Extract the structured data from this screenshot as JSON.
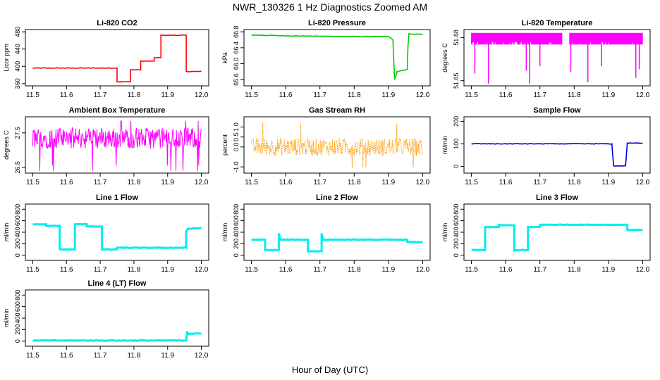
{
  "figure": {
    "title": "NWR_130326  1 Hz Diagnostics Zoomed AM",
    "xlabel": "Hour of Day (UTC)"
  },
  "chart_data": [
    {
      "type": "line",
      "title": "Li-820 CO2",
      "ylabel": "Licor ppm",
      "color": "#ff0000",
      "xlim": [
        11.5,
        12.0
      ],
      "ylim": [
        360,
        480
      ],
      "xticks": [
        "11.5",
        "11.6",
        "11.7",
        "11.8",
        "11.9",
        "12.0"
      ],
      "yticks": [
        "360",
        "400",
        "440",
        "480"
      ],
      "series": [
        {
          "x": [
            11.5,
            11.75,
            11.75,
            11.76,
            11.76,
            11.79,
            11.79,
            11.82,
            11.82,
            11.86,
            11.86,
            11.88,
            11.88,
            11.955,
            11.955,
            12.0
          ],
          "y": [
            396,
            396,
            364,
            364,
            364,
            364,
            392,
            392,
            412,
            412,
            420,
            420,
            472,
            472,
            388,
            388
          ]
        }
      ]
    },
    {
      "type": "line",
      "title": "Li-820 Pressure",
      "ylabel": "kPa",
      "color": "#00cc00",
      "xlim": [
        11.5,
        12.0
      ],
      "ylim": [
        65.5,
        66.8
      ],
      "xticks": [
        "11.5",
        "11.6",
        "11.7",
        "11.8",
        "11.9",
        "12.0"
      ],
      "yticks": [
        "65.6",
        "66.0",
        "66.4",
        "66.8"
      ],
      "series": [
        {
          "x": [
            11.5,
            11.6,
            11.7,
            11.8,
            11.9,
            11.913,
            11.918,
            11.925,
            11.925,
            11.955,
            11.957,
            11.96,
            11.965,
            12.0
          ],
          "y": [
            66.72,
            66.7,
            66.69,
            66.68,
            66.68,
            66.6,
            65.6,
            65.78,
            65.8,
            65.85,
            66.45,
            66.75,
            66.74,
            66.74
          ]
        }
      ]
    },
    {
      "type": "line",
      "title": "Li-820 Temperature",
      "ylabel": "degrees C",
      "color": "#ff00ff",
      "xlim": [
        11.5,
        12.0
      ],
      "ylim": [
        51.648,
        51.684
      ],
      "xticks": [
        "11.5",
        "11.6",
        "11.7",
        "11.8",
        "11.9",
        "12.0"
      ],
      "yticks": [
        "51.65",
        "51.68"
      ],
      "series": [
        {
          "low": 51.6752,
          "high": 51.6832,
          "gaps": [
            [
              11.765,
              11.786
            ]
          ],
          "spikes_down": [
            [
              11.51,
              51.655
            ],
            [
              11.55,
              51.648
            ],
            [
              11.66,
              51.657
            ],
            [
              11.67,
              51.648
            ],
            [
              11.7,
              51.66
            ],
            [
              11.79,
              51.656
            ],
            [
              11.84,
              51.649
            ],
            [
              11.88,
              51.66
            ],
            [
              11.98,
              51.652
            ],
            [
              11.99,
              51.658
            ]
          ]
        }
      ]
    },
    {
      "type": "line",
      "title": "Ambient Box Temperature",
      "ylabel": "degrees C",
      "color": "#ff00ff",
      "xlim": [
        11.5,
        12.0
      ],
      "ylim": [
        26.4,
        27.9
      ],
      "xticks": [
        "11.5",
        "11.6",
        "11.7",
        "11.8",
        "11.9",
        "12.0"
      ],
      "yticks": [
        "26.5",
        "27.5"
      ],
      "series": [
        {
          "center": 27.35,
          "spread": 0.3,
          "extremes": [
            26.55,
            27.85
          ]
        }
      ]
    },
    {
      "type": "scatter",
      "title": "Gas Stream RH",
      "ylabel": "percent",
      "color": "#ff9900",
      "xlim": [
        11.5,
        12.0
      ],
      "ylim": [
        -1.2,
        1.4
      ],
      "xticks": [
        "11.5",
        "11.6",
        "11.7",
        "11.8",
        "11.9",
        "12.0"
      ],
      "yticks": [
        "-1.0",
        "0.0",
        "0.5",
        "1.0"
      ],
      "series": [
        {
          "center": 0.0,
          "spread": 0.45,
          "extremes": [
            -1.1,
            1.25
          ]
        }
      ]
    },
    {
      "type": "line",
      "title": "Sample Flow",
      "ylabel": "ml/min",
      "color": "#0000cc",
      "xlim": [
        11.5,
        12.0
      ],
      "ylim": [
        -20,
        210
      ],
      "xticks": [
        "11.5",
        "11.6",
        "11.7",
        "11.8",
        "11.9",
        "12.0"
      ],
      "yticks": [
        "0",
        "100",
        "200"
      ],
      "series": [
        {
          "x": [
            11.5,
            11.91,
            11.915,
            11.95,
            11.955,
            12.0
          ],
          "y": [
            100,
            100,
            2,
            2,
            103,
            103
          ]
        }
      ]
    },
    {
      "type": "line",
      "title": "Line 1 Flow",
      "ylabel": "ml/min",
      "color": "#00eeee",
      "xlim": [
        11.5,
        12.0
      ],
      "ylim": [
        -50,
        850
      ],
      "xticks": [
        "11.5",
        "11.6",
        "11.7",
        "11.8",
        "11.9",
        "12.0"
      ],
      "yticks": [
        "0",
        "200",
        "400",
        "600",
        "800"
      ],
      "series": [
        {
          "x": [
            11.5,
            11.54,
            11.54,
            11.58,
            11.58,
            11.625,
            11.625,
            11.66,
            11.66,
            11.705,
            11.705,
            11.75,
            11.75,
            11.955,
            11.955,
            11.96,
            12.0
          ],
          "y": [
            540,
            540,
            510,
            510,
            100,
            100,
            540,
            540,
            500,
            500,
            100,
            100,
            130,
            130,
            420,
            460,
            470
          ]
        }
      ]
    },
    {
      "type": "line",
      "title": "Line 2 Flow",
      "ylabel": "ml/min",
      "color": "#00eeee",
      "xlim": [
        11.5,
        12.0
      ],
      "ylim": [
        -50,
        850
      ],
      "xticks": [
        "11.5",
        "11.6",
        "11.7",
        "11.8",
        "11.9",
        "12.0"
      ],
      "yticks": [
        "0",
        "200",
        "400",
        "600",
        "800"
      ],
      "series": [
        {
          "x": [
            11.5,
            11.54,
            11.54,
            11.58,
            11.58,
            11.585,
            11.665,
            11.665,
            11.705,
            11.705,
            11.71,
            11.955,
            11.955,
            12.0
          ],
          "y": [
            270,
            270,
            90,
            90,
            380,
            270,
            270,
            70,
            70,
            380,
            270,
            270,
            230,
            230
          ]
        }
      ]
    },
    {
      "type": "line",
      "title": "Line 3 Flow",
      "ylabel": "ml/min",
      "color": "#00eeee",
      "xlim": [
        11.5,
        12.0
      ],
      "ylim": [
        -50,
        850
      ],
      "xticks": [
        "11.5",
        "11.6",
        "11.7",
        "11.8",
        "11.9",
        "12.0"
      ],
      "yticks": [
        "0",
        "200",
        "400",
        "600",
        "800"
      ],
      "series": [
        {
          "x": [
            11.5,
            11.54,
            11.54,
            11.58,
            11.58,
            11.625,
            11.625,
            11.665,
            11.665,
            11.7,
            11.7,
            11.955,
            11.955,
            12.0
          ],
          "y": [
            90,
            90,
            490,
            490,
            520,
            520,
            90,
            90,
            490,
            490,
            530,
            530,
            440,
            440
          ]
        }
      ]
    },
    {
      "type": "line",
      "title": "Line 4 (LT) Flow",
      "ylabel": "ml/min",
      "color": "#00eeee",
      "xlim": [
        11.5,
        12.0
      ],
      "ylim": [
        -50,
        850
      ],
      "xticks": [
        "11.5",
        "11.6",
        "11.7",
        "11.8",
        "11.9",
        "12.0"
      ],
      "yticks": [
        "0",
        "200",
        "400",
        "600",
        "800"
      ],
      "series": [
        {
          "x": [
            11.5,
            11.955,
            11.958,
            11.96,
            12.0
          ],
          "y": [
            10,
            10,
            170,
            130,
            130
          ]
        }
      ]
    }
  ]
}
